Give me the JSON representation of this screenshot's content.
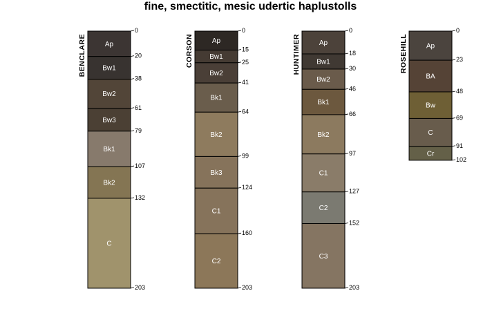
{
  "title": "fine, smectitic, mesic udertic haplustolls",
  "profiles": [
    {
      "name": "BENCLARE",
      "horizons": [
        {
          "name": "Ap",
          "top": 0,
          "bottom": 20,
          "color": "#3c3533"
        },
        {
          "name": "Bw1",
          "top": 20,
          "bottom": 38,
          "color": "#383330"
        },
        {
          "name": "Bw2",
          "top": 38,
          "bottom": 61,
          "color": "#524538"
        },
        {
          "name": "Bw3",
          "top": 61,
          "bottom": 79,
          "color": "#4b4034"
        },
        {
          "name": "Bk1",
          "top": 79,
          "bottom": 107,
          "color": "#877a6c"
        },
        {
          "name": "Bk2",
          "top": 107,
          "bottom": 132,
          "color": "#847553"
        },
        {
          "name": "C",
          "top": 132,
          "bottom": 203,
          "color": "#a0936c"
        }
      ]
    },
    {
      "name": "CORSON",
      "horizons": [
        {
          "name": "Ap",
          "top": 0,
          "bottom": 15,
          "color": "#2d2824"
        },
        {
          "name": "Bw1",
          "top": 15,
          "bottom": 25,
          "color": "#453b33"
        },
        {
          "name": "Bw2",
          "top": 25,
          "bottom": 41,
          "color": "#4a3f37"
        },
        {
          "name": "Bk1",
          "top": 41,
          "bottom": 64,
          "color": "#6a5d4c"
        },
        {
          "name": "Bk2",
          "top": 64,
          "bottom": 99,
          "color": "#8e7b5e"
        },
        {
          "name": "Bk3",
          "top": 99,
          "bottom": 124,
          "color": "#86735b"
        },
        {
          "name": "C1",
          "top": 124,
          "bottom": 160,
          "color": "#86735b"
        },
        {
          "name": "C2",
          "top": 160,
          "bottom": 203,
          "color": "#8c7759"
        }
      ]
    },
    {
      "name": "HUNTIMER",
      "horizons": [
        {
          "name": "Ap",
          "top": 0,
          "bottom": 18,
          "color": "#4c423a"
        },
        {
          "name": "Bw1",
          "top": 18,
          "bottom": 30,
          "color": "#403933"
        },
        {
          "name": "Bw2",
          "top": 30,
          "bottom": 46,
          "color": "#6a5b4b"
        },
        {
          "name": "Bk1",
          "top": 46,
          "bottom": 66,
          "color": "#6c583e"
        },
        {
          "name": "Bk2",
          "top": 66,
          "bottom": 97,
          "color": "#8c7a5f"
        },
        {
          "name": "C1",
          "top": 97,
          "bottom": 127,
          "color": "#8a7c69"
        },
        {
          "name": "C2",
          "top": 127,
          "bottom": 152,
          "color": "#7b7a71"
        },
        {
          "name": "C3",
          "top": 152,
          "bottom": 203,
          "color": "#857562"
        }
      ]
    },
    {
      "name": "ROSEHILL",
      "horizons": [
        {
          "name": "Ap",
          "top": 0,
          "bottom": 23,
          "color": "#4b443e"
        },
        {
          "name": "BA",
          "top": 23,
          "bottom": 48,
          "color": "#554336"
        },
        {
          "name": "Bw",
          "top": 48,
          "bottom": 69,
          "color": "#6e5f35"
        },
        {
          "name": "C",
          "top": 69,
          "bottom": 91,
          "color": "#685c4c"
        },
        {
          "name": "Cr",
          "top": 91,
          "bottom": 102,
          "color": "#646048"
        }
      ]
    }
  ]
}
